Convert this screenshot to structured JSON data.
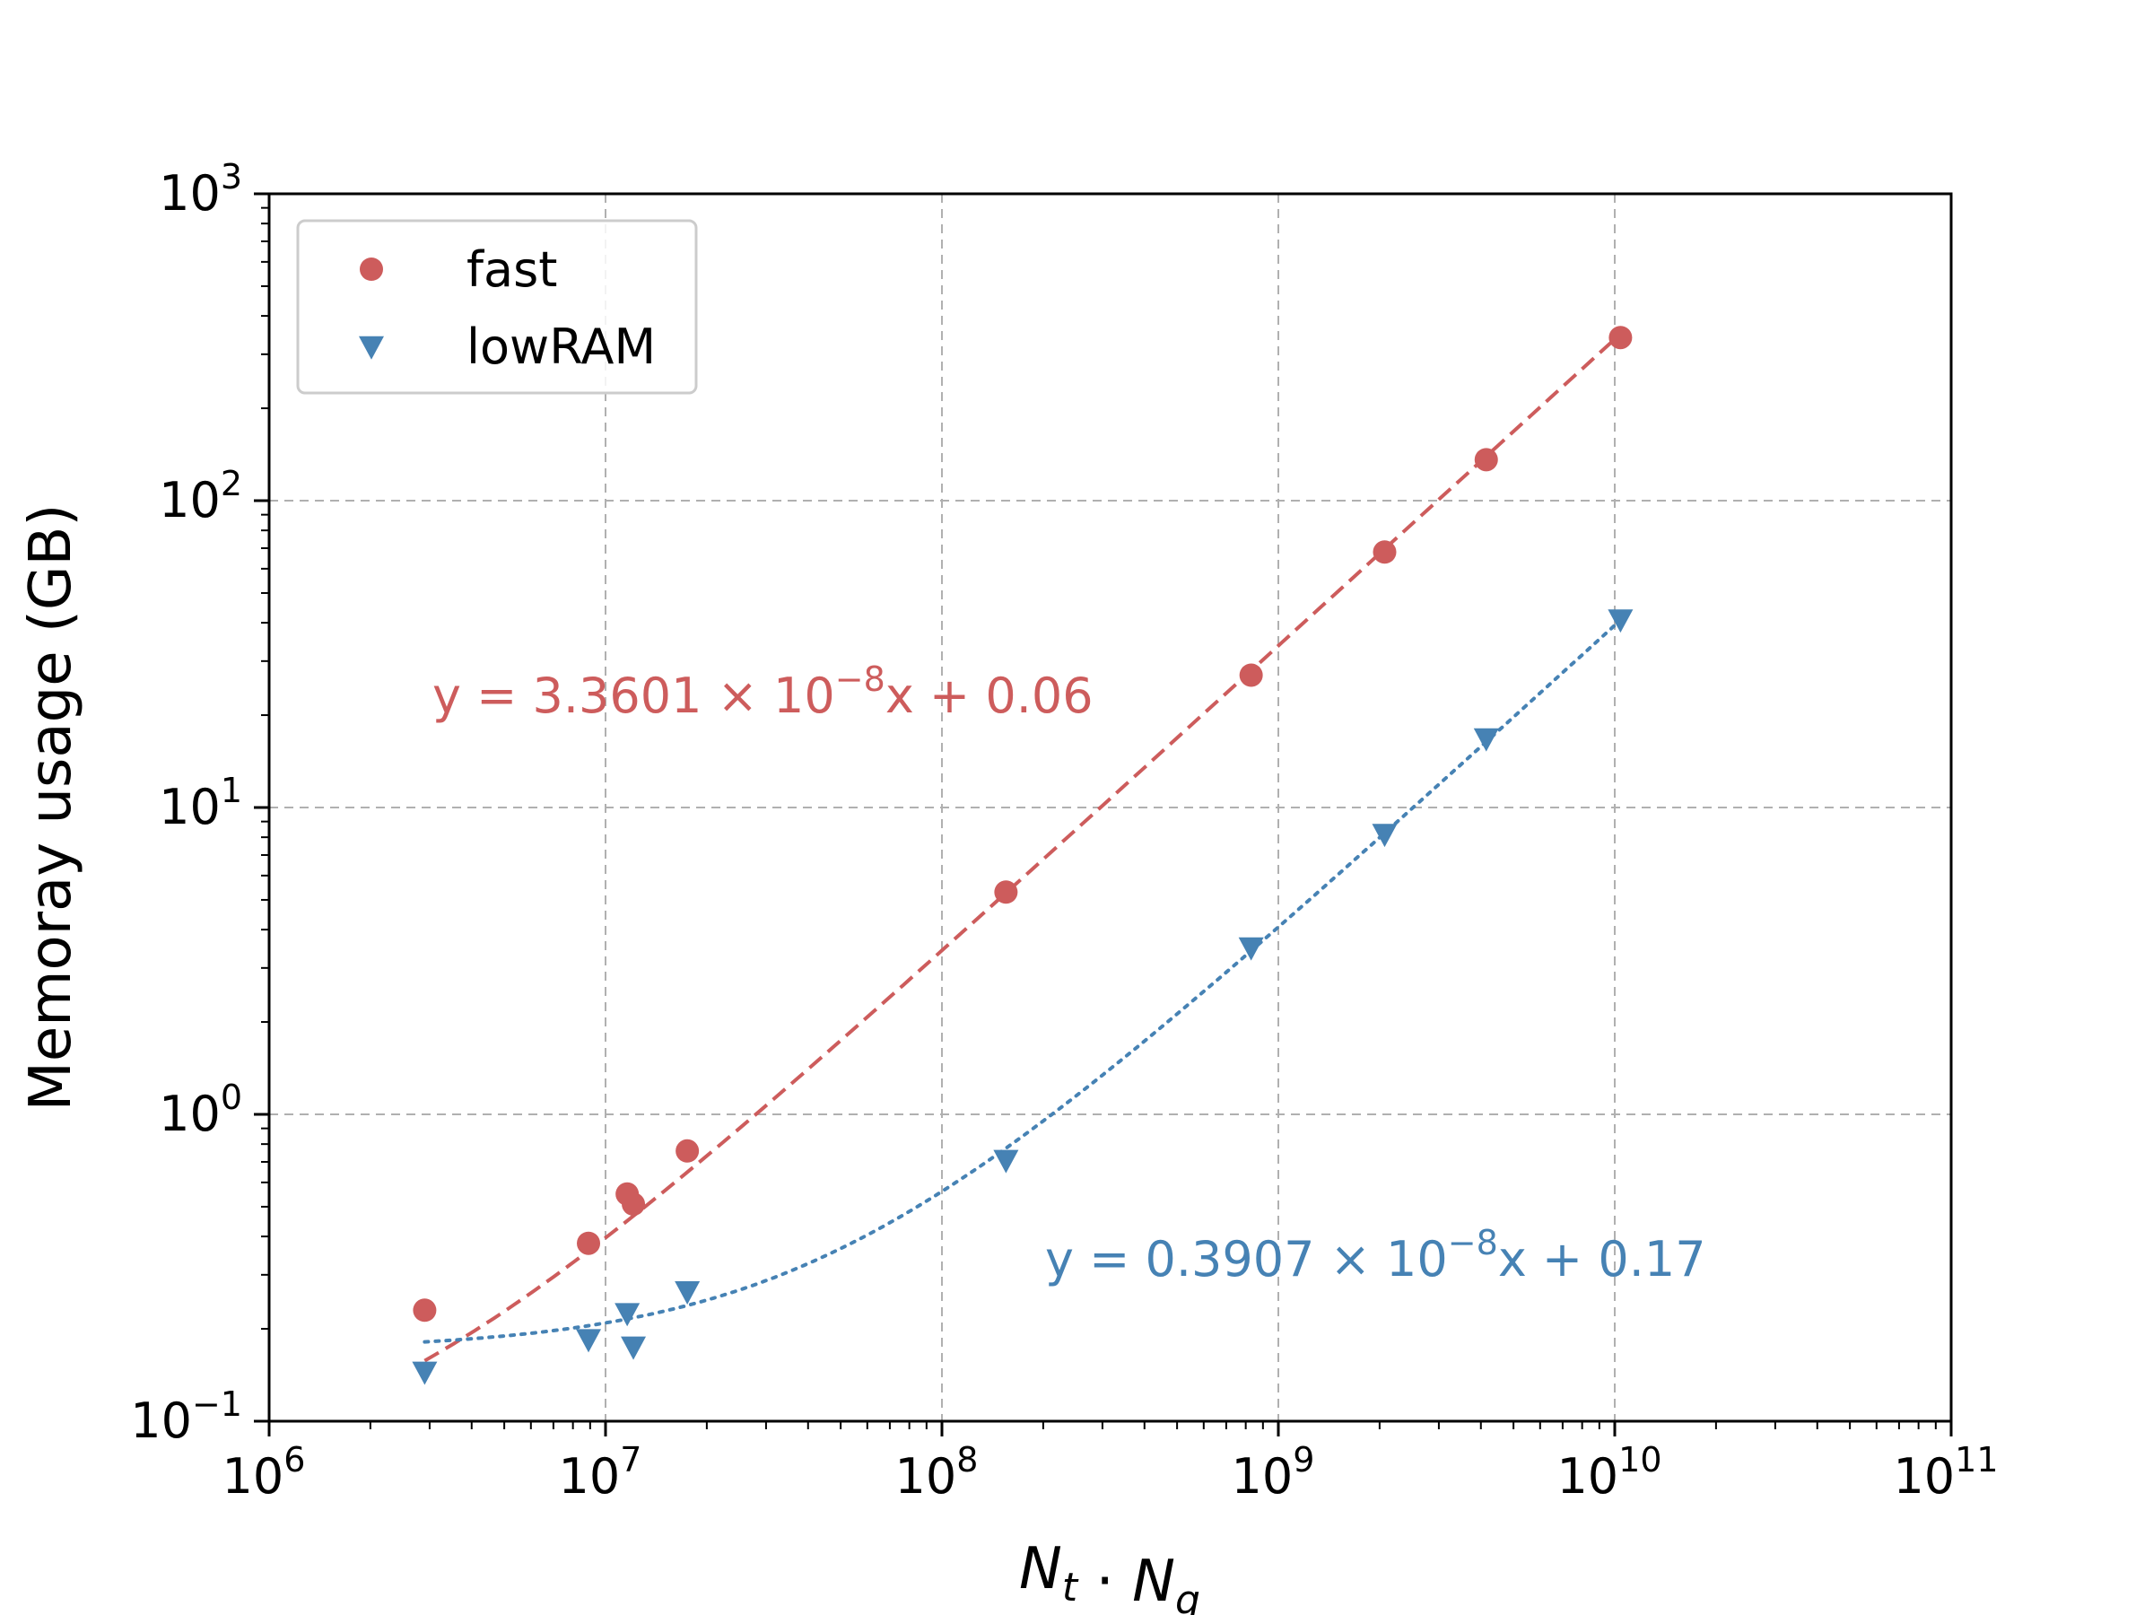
{
  "chart_data": {
    "type": "scatter",
    "xscale": "log",
    "yscale": "log",
    "xlim": [
      1000000,
      100000000000
    ],
    "ylim": [
      0.1,
      1000
    ],
    "xlabel": "N_t · N_q",
    "ylabel": "Memoray usage (GB)",
    "grid": true,
    "legend_position": "top-left",
    "x_ticks": [
      {
        "base": "10",
        "exp": "6"
      },
      {
        "base": "10",
        "exp": "7"
      },
      {
        "base": "10",
        "exp": "8"
      },
      {
        "base": "10",
        "exp": "9"
      },
      {
        "base": "10",
        "exp": "10"
      },
      {
        "base": "10",
        "exp": "11"
      }
    ],
    "y_ticks": [
      {
        "base": "10",
        "exp": "−1"
      },
      {
        "base": "10",
        "exp": "0"
      },
      {
        "base": "10",
        "exp": "1"
      },
      {
        "base": "10",
        "exp": "2"
      },
      {
        "base": "10",
        "exp": "3"
      }
    ],
    "series": [
      {
        "name": "fast",
        "marker": "circle",
        "color": "#cd5c5c",
        "x": [
          2900000,
          8900000,
          11600000,
          12100000,
          17500000,
          155000000,
          830000000,
          2070000000,
          4150000000,
          10400000000
        ],
        "y": [
          0.23,
          0.38,
          0.55,
          0.51,
          0.76,
          5.3,
          27,
          68,
          136,
          340
        ],
        "fit_line": "dashed",
        "fit_slope": 3.3601e-08,
        "fit_intercept": 0.06,
        "equation": {
          "prefix": "y = 3.3601 × 10",
          "exp": "−8",
          "suffix": "x + 0.06"
        }
      },
      {
        "name": "lowRAM",
        "marker": "triangle-down",
        "color": "#4682b4",
        "x": [
          2900000,
          8900000,
          11600000,
          12100000,
          17500000,
          155000000,
          830000000,
          2070000000,
          4150000000,
          10400000000
        ],
        "y": [
          0.145,
          0.185,
          0.225,
          0.175,
          0.265,
          0.71,
          3.5,
          8.2,
          16.8,
          41
        ],
        "fit_line": "dotted",
        "fit_slope": 3.907e-09,
        "fit_intercept": 0.17,
        "equation": {
          "prefix": "y = 0.3907 × 10",
          "exp": "−8",
          "suffix": "x + 0.17"
        }
      }
    ]
  }
}
